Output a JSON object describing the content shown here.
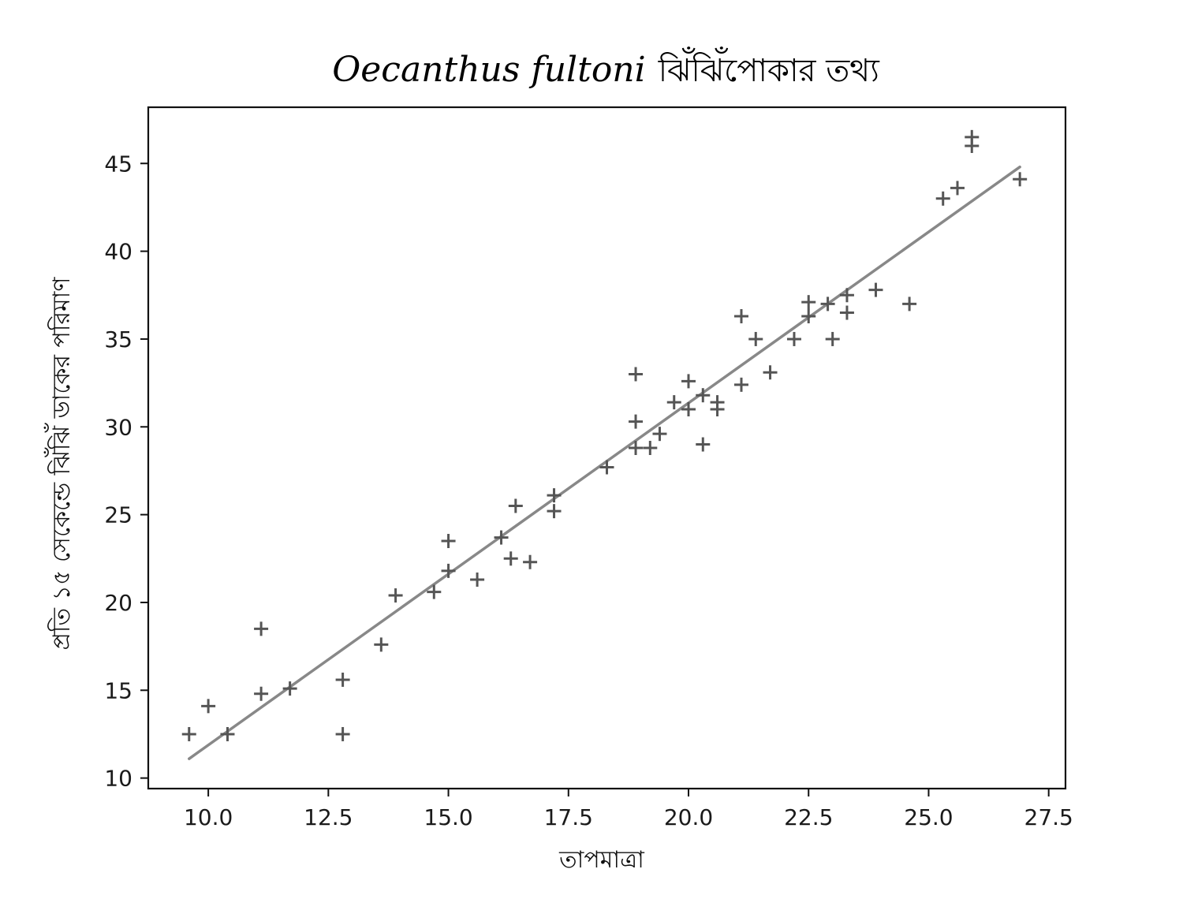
{
  "chart_data": {
    "type": "scatter",
    "title": {
      "species": "Oecanthus fultoni",
      "text": "ঝিঁঝিঁপোকার তথ্য"
    },
    "xlabel": "তাপমাত্রা",
    "ylabel": "প্রতি ১৫ সেকেন্ডে ঝিঁঝিঁ ডাকের পরিমাণ",
    "xlim": [
      8.75,
      27.85
    ],
    "ylim": [
      9.4,
      48.2
    ],
    "xticks": [
      "10.0",
      "12.5",
      "15.0",
      "17.5",
      "20.0",
      "22.5",
      "25.0",
      "27.5"
    ],
    "yticks": [
      "10",
      "15",
      "20",
      "25",
      "30",
      "35",
      "40",
      "45"
    ],
    "grid": false,
    "marker": "+",
    "marker_color": "#555555",
    "line_color": "#888888",
    "trendline": {
      "x": [
        9.6,
        26.9
      ],
      "y": [
        11.1,
        44.8
      ]
    },
    "points": [
      [
        9.6,
        12.5
      ],
      [
        10.0,
        14.1
      ],
      [
        10.4,
        12.5
      ],
      [
        11.1,
        18.5
      ],
      [
        11.1,
        14.8
      ],
      [
        11.7,
        15.1
      ],
      [
        12.8,
        15.6
      ],
      [
        12.8,
        12.5
      ],
      [
        13.6,
        17.6
      ],
      [
        13.9,
        20.4
      ],
      [
        14.7,
        20.6
      ],
      [
        15.0,
        23.5
      ],
      [
        15.0,
        21.8
      ],
      [
        15.6,
        21.3
      ],
      [
        16.1,
        23.7
      ],
      [
        16.3,
        22.5
      ],
      [
        16.4,
        25.5
      ],
      [
        16.7,
        22.3
      ],
      [
        17.2,
        26.1
      ],
      [
        17.2,
        25.2
      ],
      [
        18.3,
        27.7
      ],
      [
        18.9,
        33.0
      ],
      [
        18.9,
        30.3
      ],
      [
        18.9,
        28.8
      ],
      [
        19.2,
        28.8
      ],
      [
        19.4,
        29.6
      ],
      [
        19.7,
        31.4
      ],
      [
        20.0,
        32.6
      ],
      [
        20.0,
        31.0
      ],
      [
        20.3,
        29.0
      ],
      [
        20.3,
        31.8
      ],
      [
        20.6,
        31.4
      ],
      [
        20.6,
        31.0
      ],
      [
        21.1,
        36.3
      ],
      [
        21.1,
        32.4
      ],
      [
        21.4,
        35.0
      ],
      [
        21.7,
        33.1
      ],
      [
        22.2,
        35.0
      ],
      [
        22.5,
        37.1
      ],
      [
        22.5,
        36.3
      ],
      [
        22.9,
        37.0
      ],
      [
        23.0,
        35.0
      ],
      [
        23.3,
        37.5
      ],
      [
        23.3,
        36.5
      ],
      [
        23.9,
        37.8
      ],
      [
        24.6,
        37.0
      ],
      [
        25.3,
        43.0
      ],
      [
        25.6,
        43.6
      ],
      [
        25.9,
        46.5
      ],
      [
        25.9,
        46.0
      ],
      [
        26.9,
        44.1
      ]
    ]
  }
}
